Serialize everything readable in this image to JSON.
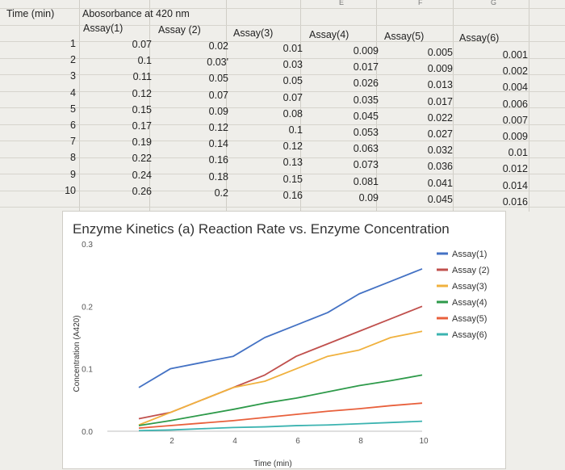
{
  "sheet": {
    "column_letters": [
      "E",
      "F",
      "G"
    ],
    "header_time": "Time (min)",
    "header_absorbance": "Abosorbance at 420 nm",
    "assay_headers": [
      "Assay(1)",
      "Assay (2)",
      "Assay(3)",
      "Assay(4)",
      "Assay(5)",
      "Assay(6)"
    ],
    "rows": [
      {
        "t": "1",
        "v": [
          "0.07",
          "0.02",
          "0.01",
          "0.009",
          "0.005",
          "0.001"
        ]
      },
      {
        "t": "2",
        "v": [
          "0.1",
          "0.03'",
          "0.03",
          "0.017",
          "0.009",
          "0.002"
        ]
      },
      {
        "t": "3",
        "v": [
          "0.11",
          "0.05",
          "0.05",
          "0.026",
          "0.013",
          "0.004"
        ]
      },
      {
        "t": "4",
        "v": [
          "0.12",
          "0.07",
          "0.07",
          "0.035",
          "0.017",
          "0.006"
        ]
      },
      {
        "t": "5",
        "v": [
          "0.15",
          "0.09",
          "0.08",
          "0.045",
          "0.022",
          "0.007"
        ]
      },
      {
        "t": "6",
        "v": [
          "0.17",
          "0.12",
          "0.1",
          "0.053",
          "0.027",
          "0.009"
        ]
      },
      {
        "t": "7",
        "v": [
          "0.19",
          "0.14",
          "0.12",
          "0.063",
          "0.032",
          "0.01"
        ]
      },
      {
        "t": "8",
        "v": [
          "0.22",
          "0.16",
          "0.13",
          "0.073",
          "0.036",
          "0.012"
        ]
      },
      {
        "t": "9",
        "v": [
          "0.24",
          "0.18",
          "0.15",
          "0.081",
          "0.041",
          "0.014"
        ]
      },
      {
        "t": "10",
        "v": [
          "0.26",
          "0.2",
          "0.16",
          "0.09",
          "0.045",
          "0.016"
        ]
      }
    ]
  },
  "chart_data": {
    "type": "line",
    "title": "Enzyme Kinetics (a) Reaction Rate vs. Enzyme Concentration",
    "xlabel": "Time (min)",
    "ylabel": "Concentration (A420)",
    "xlim": [
      0,
      10
    ],
    "ylim": [
      0,
      0.3
    ],
    "x_ticks": [
      2,
      4,
      6,
      8,
      10
    ],
    "y_ticks": [
      0.0,
      0.1,
      0.2,
      0.3
    ],
    "y_tick_labels": [
      "0.0",
      "0.1",
      "0.2",
      "0.3"
    ],
    "grid": false,
    "legend": "right",
    "x": [
      1,
      2,
      3,
      4,
      5,
      6,
      7,
      8,
      9,
      10
    ],
    "series": [
      {
        "name": "Assay(1)",
        "color": "#4472c4",
        "values": [
          0.07,
          0.1,
          0.11,
          0.12,
          0.15,
          0.17,
          0.19,
          0.22,
          0.24,
          0.26
        ]
      },
      {
        "name": "Assay (2)",
        "color": "#c0504d",
        "values": [
          0.02,
          0.03,
          0.05,
          0.07,
          0.09,
          0.12,
          0.14,
          0.16,
          0.18,
          0.2
        ]
      },
      {
        "name": "Assay(3)",
        "color": "#f0b13e",
        "values": [
          0.01,
          0.03,
          0.05,
          0.07,
          0.08,
          0.1,
          0.12,
          0.13,
          0.15,
          0.16
        ]
      },
      {
        "name": "Assay(4)",
        "color": "#2e9a4a",
        "values": [
          0.009,
          0.017,
          0.026,
          0.035,
          0.045,
          0.053,
          0.063,
          0.073,
          0.081,
          0.09
        ]
      },
      {
        "name": "Assay(5)",
        "color": "#e8603c",
        "values": [
          0.005,
          0.009,
          0.013,
          0.017,
          0.022,
          0.027,
          0.032,
          0.036,
          0.041,
          0.045
        ]
      },
      {
        "name": "Assay(6)",
        "color": "#3bb3b0",
        "values": [
          0.001,
          0.002,
          0.004,
          0.006,
          0.007,
          0.009,
          0.01,
          0.012,
          0.014,
          0.016
        ]
      }
    ]
  }
}
